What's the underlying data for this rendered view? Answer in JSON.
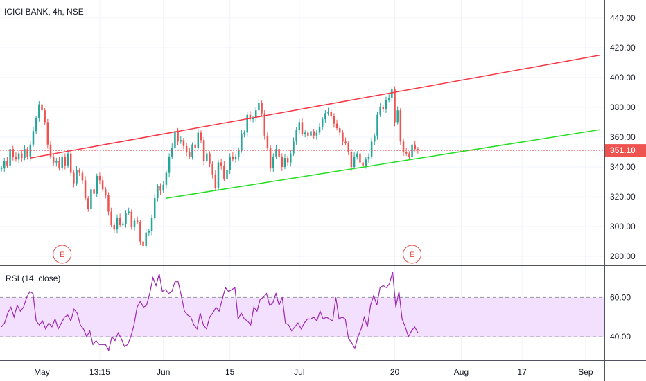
{
  "header": {
    "title": "ICICI BANK, 4h, NSE"
  },
  "rsi": {
    "title": "RSI (14, close)"
  },
  "last_price": {
    "label": "351.10",
    "value": 351.1,
    "color": "#ef5350"
  },
  "colors": {
    "up": "#26a69a",
    "down": "#ef5350",
    "resistance": "#f23645",
    "support": "#22dd22",
    "rsi_line": "#9c27b0",
    "rsi_band": "#f3e0ff",
    "grid": "#f0f3fa",
    "axis_border": "#50535e"
  },
  "earnings_markers": [
    {
      "label": "E",
      "icon": "earnings-circle-icon",
      "x_index": 21
    },
    {
      "label": "E",
      "icon": "earnings-circle-icon",
      "x_index": 142
    }
  ],
  "chart_data": [
    {
      "type": "candlestick",
      "title": "ICICI BANK, 4h, NSE",
      "y_ticks": [
        "280.00",
        "300.00",
        "320.00",
        "340.00",
        "360.00",
        "380.00",
        "400.00",
        "420.00",
        "440.00"
      ],
      "ylim": [
        274,
        452
      ],
      "x_ticks": [
        {
          "label": "May",
          "index": 14
        },
        {
          "label": "13:15",
          "index": 34
        },
        {
          "label": "Jun",
          "index": 56
        },
        {
          "label": "15",
          "index": 79
        },
        {
          "label": "Jul",
          "index": 103
        },
        {
          "label": "20",
          "index": 136
        },
        {
          "label": "Aug",
          "index": 159
        },
        {
          "label": "17",
          "index": 180
        },
        {
          "label": "Sep",
          "index": 202
        }
      ],
      "n_slots": 209,
      "closes": [
        339,
        344,
        341,
        352,
        347,
        345,
        349,
        346,
        352,
        347,
        355,
        364,
        373,
        382,
        378,
        370,
        355,
        347,
        343,
        344,
        339,
        347,
        341,
        349,
        336,
        329,
        338,
        336,
        331,
        319,
        312,
        325,
        322,
        334,
        331,
        325,
        321,
        310,
        301,
        298,
        306,
        301,
        302,
        309,
        310,
        300,
        304,
        303,
        290,
        287,
        296,
        297,
        306,
        319,
        327,
        324,
        328,
        336,
        347,
        353,
        364,
        357,
        358,
        354,
        350,
        347,
        355,
        353,
        363,
        358,
        344,
        349,
        342,
        335,
        326,
        343,
        341,
        332,
        338,
        347,
        345,
        347,
        351,
        362,
        363,
        375,
        372,
        373,
        378,
        383,
        376,
        361,
        353,
        339,
        347,
        352,
        347,
        340,
        346,
        343,
        349,
        357,
        365,
        370,
        362,
        363,
        361,
        364,
        361,
        363,
        367,
        372,
        376,
        377,
        374,
        369,
        366,
        363,
        357,
        356,
        350,
        340,
        347,
        349,
        343,
        341,
        345,
        347,
        357,
        361,
        375,
        380,
        379,
        385,
        386,
        392,
        370,
        378,
        357,
        350,
        349,
        347,
        355,
        352,
        351.1
      ],
      "rsi": {
        "title": "RSI (14, close)",
        "values": [
          45,
          47,
          52,
          55,
          50,
          56,
          53,
          55,
          60,
          63,
          62,
          48,
          46,
          48,
          44,
          47,
          45,
          49,
          44,
          47,
          50,
          51,
          48,
          54,
          52,
          46,
          44,
          40,
          43,
          36,
          38,
          36,
          36,
          36,
          33,
          40,
          38,
          42,
          39,
          35,
          36,
          40,
          46,
          55,
          58,
          55,
          56,
          62,
          70,
          66,
          72,
          63,
          64,
          62,
          63,
          68,
          68,
          61,
          53,
          51,
          50,
          46,
          44,
          52,
          46,
          44,
          50,
          52,
          55,
          53,
          59,
          65,
          63,
          64,
          65,
          49,
          52,
          49,
          48,
          46,
          55,
          53,
          59,
          60,
          62,
          56,
          57,
          62,
          56,
          60,
          47,
          46,
          43,
          45,
          47,
          44,
          47,
          49,
          49,
          50,
          48,
          53,
          49,
          50,
          49,
          48,
          60,
          49,
          50,
          49,
          39,
          37,
          34,
          40,
          44,
          50,
          45,
          56,
          61,
          56,
          65,
          66,
          65,
          67,
          73,
          55,
          63,
          49,
          45,
          40,
          43,
          45,
          42
        ],
        "ylim": [
          28,
          76
        ],
        "y_ticks": [
          "40.00",
          "60.00"
        ],
        "band": [
          40,
          60
        ]
      },
      "trendlines": [
        {
          "name": "resistance",
          "from": [
            10,
            346
          ],
          "to": [
            207,
            415
          ]
        },
        {
          "name": "support",
          "from": [
            57,
            319
          ],
          "to": [
            207,
            365
          ]
        }
      ],
      "last_price": 351.1
    }
  ]
}
